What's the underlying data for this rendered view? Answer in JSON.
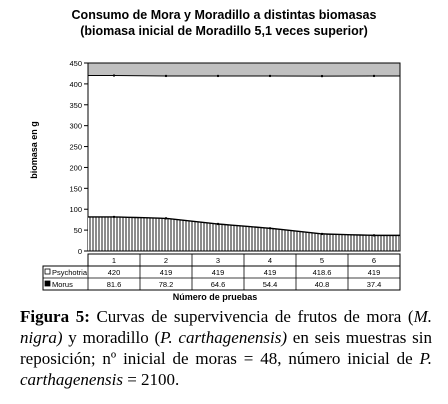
{
  "chart_data": {
    "type": "bar",
    "title": "Consumo de Mora y Moradillo a distintas biomasas",
    "subtitle": "(biomasa inicial de Moradillo 5,1 veces superior)",
    "ylabel": "biomasa en g",
    "xlabel": "Número de pruebas",
    "ylim": [
      0,
      450
    ],
    "yticks": [
      0,
      50,
      100,
      150,
      200,
      250,
      300,
      350,
      400,
      450
    ],
    "categories": [
      "1",
      "2",
      "3",
      "4",
      "5",
      "6"
    ],
    "series": [
      {
        "name": "Psychotria",
        "values": [
          420,
          419,
          419,
          419,
          418.6,
          419
        ],
        "labels": [
          "420",
          "419",
          "419",
          "419",
          "418.6",
          "419"
        ]
      },
      {
        "name": "Morus",
        "values": [
          81.6,
          78.2,
          64.6,
          54.4,
          40.8,
          37.4
        ],
        "labels": [
          "81.6",
          "78.2",
          "64.6",
          "54.4",
          "40.8",
          "37.4"
        ]
      }
    ],
    "legend": "table below chart",
    "grid": true,
    "colors": {
      "psychotria": "#ffffff",
      "morus": "#000000",
      "plot_background": "#c0c0c0"
    }
  },
  "caption": {
    "label": "Figura 5:",
    "t1": " Curvas de supervivencia de frutos de mora (",
    "sp1": "M. nigra)",
    "t2": " y moradillo (",
    "sp2": "P. carthagenensis)",
    "t3": " en seis muestras sin reposición; nº inicial de moras = 48, número inicial de ",
    "sp3": "P. carthagenensis",
    "t4": " = 2100."
  }
}
